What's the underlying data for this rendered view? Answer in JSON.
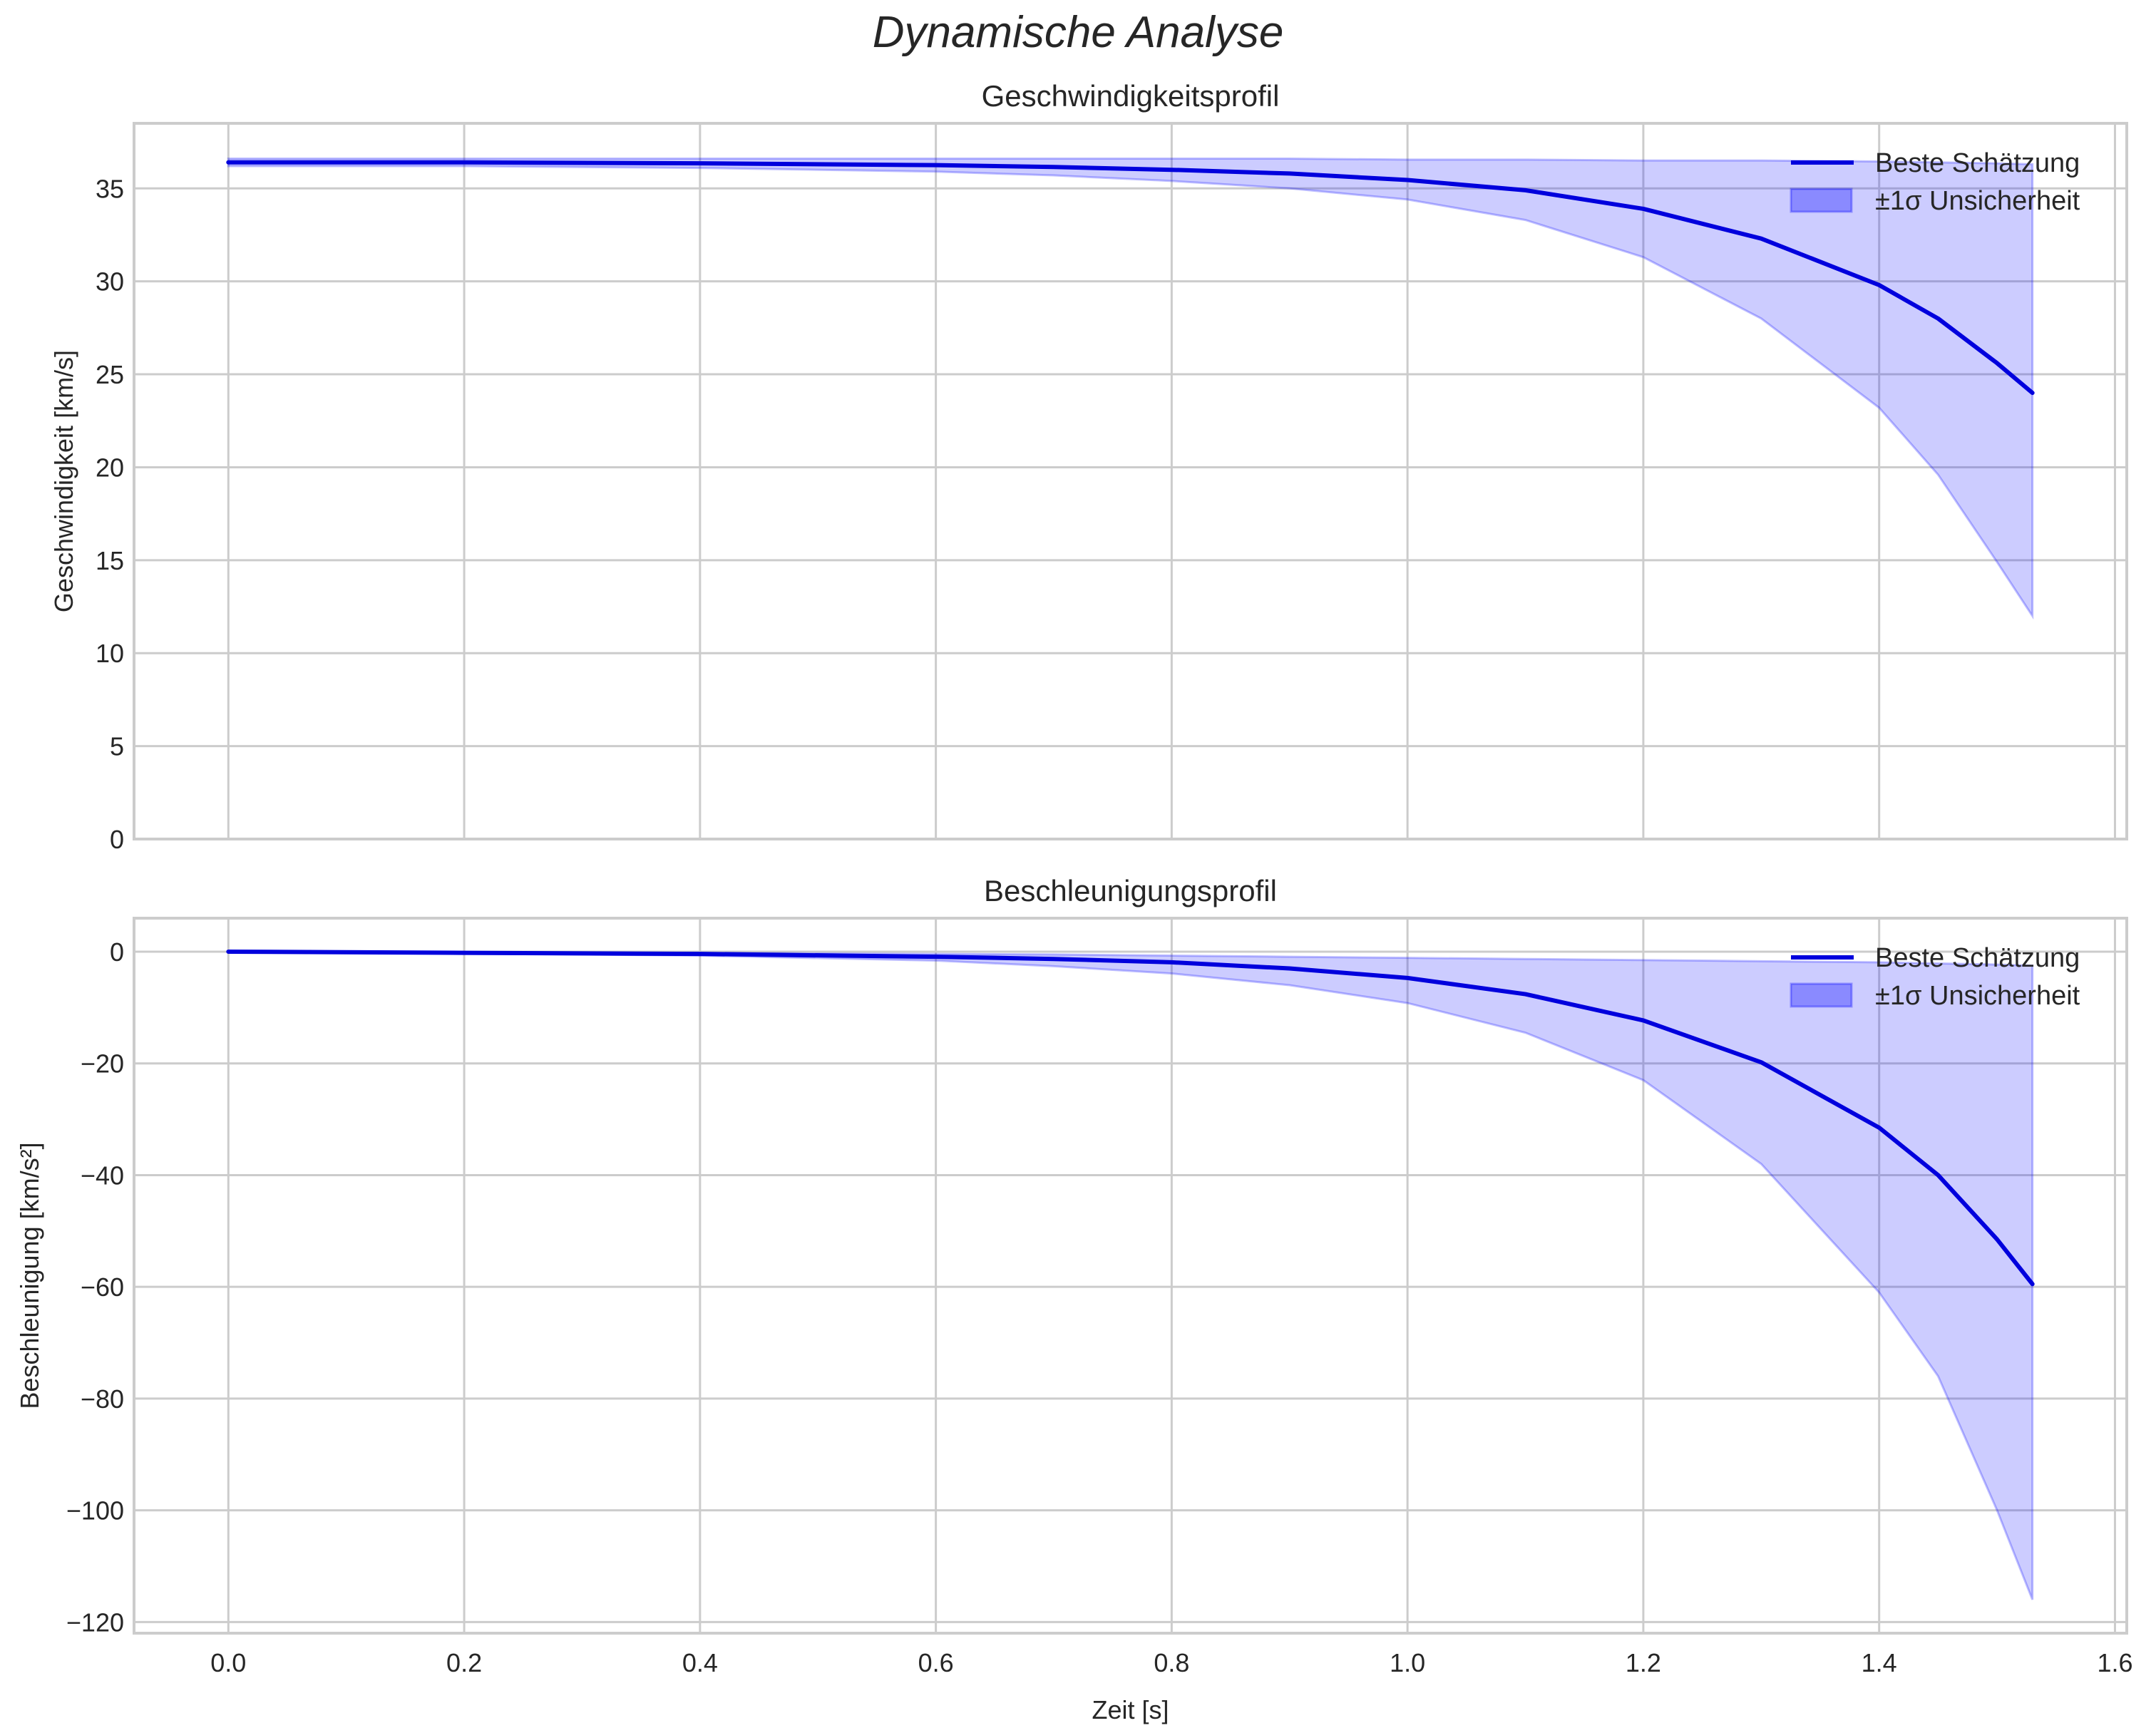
{
  "figure": {
    "suptitle": "Dynamische Analyse"
  },
  "chart_data": [
    {
      "type": "line",
      "title": "Geschwindigkeitsprofil",
      "xlabel": "",
      "ylabel": "Geschwindigkeit [km/s]",
      "xlim": [
        -0.08,
        1.61
      ],
      "ylim": [
        0,
        38.5
      ],
      "xticks": [
        "0.0",
        "0.2",
        "0.4",
        "0.6",
        "0.8",
        "1.0",
        "1.2",
        "1.4",
        "1.6"
      ],
      "yticks": [
        "0",
        "5",
        "10",
        "15",
        "20",
        "25",
        "30",
        "35"
      ],
      "grid": true,
      "legend_position": "upper right",
      "legend": [
        "Beste Schätzung",
        "±1σ Unsicherheit"
      ],
      "x": [
        0.0,
        0.2,
        0.4,
        0.6,
        0.7,
        0.8,
        0.9,
        1.0,
        1.1,
        1.2,
        1.3,
        1.4,
        1.45,
        1.5,
        1.53
      ],
      "series": [
        {
          "name": "Beste Schätzung",
          "color": "#0000dd",
          "values": [
            36.4,
            36.4,
            36.35,
            36.25,
            36.15,
            36.0,
            35.8,
            35.45,
            34.9,
            33.9,
            32.3,
            29.8,
            28.0,
            25.6,
            24.0
          ]
        },
        {
          "name": "±1σ Unsicherheit (upper)",
          "color": "#8080ff",
          "values": [
            36.6,
            36.6,
            36.6,
            36.6,
            36.6,
            36.6,
            36.6,
            36.55,
            36.55,
            36.5,
            36.5,
            36.45,
            36.4,
            36.35,
            36.3
          ]
        },
        {
          "name": "±1σ Unsicherheit (lower)",
          "color": "#8080ff",
          "values": [
            36.2,
            36.2,
            36.1,
            35.9,
            35.7,
            35.4,
            35.0,
            34.4,
            33.3,
            31.3,
            28.0,
            23.2,
            19.6,
            14.9,
            12.0
          ]
        }
      ]
    },
    {
      "type": "line",
      "title": "Beschleunigungsprofil",
      "xlabel": "Zeit [s]",
      "ylabel": "Beschleunigung [km/s²]",
      "xlim": [
        -0.08,
        1.61
      ],
      "ylim": [
        -122,
        6
      ],
      "xticks": [
        "0.0",
        "0.2",
        "0.4",
        "0.6",
        "0.8",
        "1.0",
        "1.2",
        "1.4",
        "1.6"
      ],
      "yticks": [
        "0",
        "−20",
        "−40",
        "−60",
        "−80",
        "−100",
        "−120"
      ],
      "grid": true,
      "legend_position": "upper right",
      "legend": [
        "Beste Schätzung",
        "±1σ Unsicherheit"
      ],
      "x": [
        0.0,
        0.2,
        0.4,
        0.6,
        0.7,
        0.8,
        0.9,
        1.0,
        1.1,
        1.2,
        1.3,
        1.4,
        1.45,
        1.5,
        1.53
      ],
      "series": [
        {
          "name": "Beste Schätzung",
          "color": "#0000dd",
          "values": [
            0,
            -0.2,
            -0.4,
            -0.9,
            -1.3,
            -1.9,
            -3.0,
            -4.7,
            -7.6,
            -12.3,
            -19.8,
            -31.5,
            -40.0,
            -51.5,
            -59.5
          ]
        },
        {
          "name": "±1σ Unsicherheit (upper)",
          "color": "#8080ff",
          "values": [
            0,
            -0.1,
            -0.2,
            -0.4,
            -0.5,
            -0.7,
            -0.9,
            -1.1,
            -1.3,
            -1.5,
            -1.7,
            -1.9,
            -2.1,
            -2.3,
            -2.5
          ]
        },
        {
          "name": "±1σ Unsicherheit (lower)",
          "color": "#8080ff",
          "values": [
            0,
            -0.3,
            -0.7,
            -1.6,
            -2.6,
            -3.9,
            -6.0,
            -9.2,
            -14.5,
            -23.0,
            -38.0,
            -61.0,
            -76.0,
            -100.0,
            -116.0
          ]
        }
      ]
    }
  ]
}
